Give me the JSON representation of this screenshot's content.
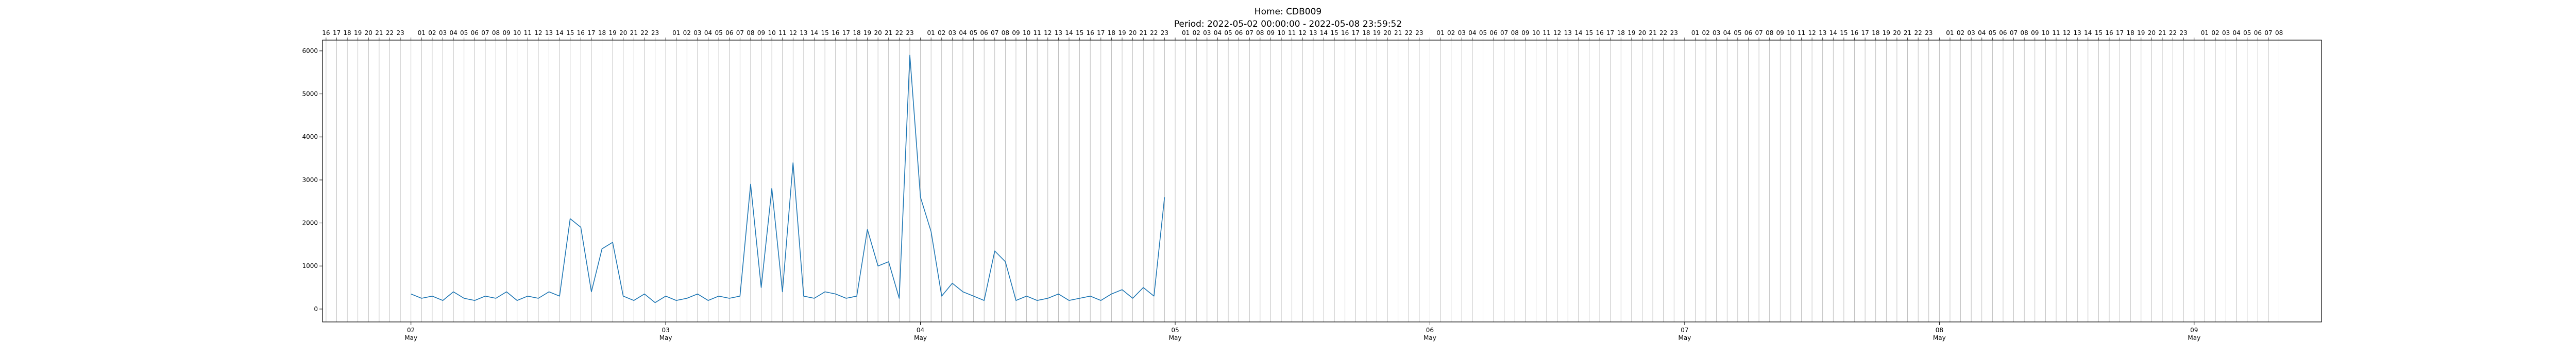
{
  "chart_data": {
    "type": "line",
    "title": "Home: CDB009",
    "subtitle": "Period: 2022-05-02 00:00:00 - 2022-05-08 23:59:52",
    "xlabel": "",
    "ylabel": "",
    "line_color": "#1f77b4",
    "grid": "vertical hourly lines",
    "xlim": [
      "2022-05-01 15:40",
      "2022-05-09 12:00"
    ],
    "ylim": [
      -300,
      6250
    ],
    "y_ticks": [
      "0",
      "1000",
      "2000",
      "3000",
      "4000",
      "5000",
      "6000"
    ],
    "x_ticks": [
      {
        "day": "02",
        "month": "May",
        "date": "2022-05-02"
      },
      {
        "day": "03",
        "month": "May",
        "date": "2022-05-03"
      },
      {
        "day": "04",
        "month": "May",
        "date": "2022-05-04"
      },
      {
        "day": "05",
        "month": "May",
        "date": "2022-05-05"
      },
      {
        "day": "06",
        "month": "May",
        "date": "2022-05-06"
      },
      {
        "day": "07",
        "month": "May",
        "date": "2022-05-07"
      },
      {
        "day": "08",
        "month": "May",
        "date": "2022-05-08"
      },
      {
        "day": "09",
        "month": "May",
        "date": "2022-05-09"
      }
    ],
    "top_axis": {
      "description": "hour labels every hour",
      "start": "2022-05-01 16:00",
      "end": "2022-05-09 08:00"
    },
    "series": [
      {
        "name": "",
        "points": [
          [
            "2022-05-02 00:00",
            350
          ],
          [
            "2022-05-02 01:00",
            250
          ],
          [
            "2022-05-02 02:00",
            300
          ],
          [
            "2022-05-02 03:00",
            200
          ],
          [
            "2022-05-02 04:00",
            400
          ],
          [
            "2022-05-02 05:00",
            250
          ],
          [
            "2022-05-02 06:00",
            200
          ],
          [
            "2022-05-02 07:00",
            300
          ],
          [
            "2022-05-02 08:00",
            250
          ],
          [
            "2022-05-02 09:00",
            400
          ],
          [
            "2022-05-02 10:00",
            200
          ],
          [
            "2022-05-02 11:00",
            300
          ],
          [
            "2022-05-02 12:00",
            250
          ],
          [
            "2022-05-02 13:00",
            400
          ],
          [
            "2022-05-02 14:00",
            300
          ],
          [
            "2022-05-02 15:00",
            2100
          ],
          [
            "2022-05-02 16:00",
            1900
          ],
          [
            "2022-05-02 17:00",
            400
          ],
          [
            "2022-05-02 18:00",
            1400
          ],
          [
            "2022-05-02 19:00",
            1550
          ],
          [
            "2022-05-02 20:00",
            300
          ],
          [
            "2022-05-02 21:00",
            200
          ],
          [
            "2022-05-02 22:00",
            350
          ],
          [
            "2022-05-02 23:00",
            150
          ],
          [
            "2022-05-03 00:00",
            300
          ],
          [
            "2022-05-03 01:00",
            200
          ],
          [
            "2022-05-03 02:00",
            250
          ],
          [
            "2022-05-03 03:00",
            350
          ],
          [
            "2022-05-03 04:00",
            200
          ],
          [
            "2022-05-03 05:00",
            300
          ],
          [
            "2022-05-03 06:00",
            250
          ],
          [
            "2022-05-03 07:00",
            300
          ],
          [
            "2022-05-03 08:00",
            2900
          ],
          [
            "2022-05-03 09:00",
            500
          ],
          [
            "2022-05-03 10:00",
            2800
          ],
          [
            "2022-05-03 11:00",
            400
          ],
          [
            "2022-05-03 12:00",
            3400
          ],
          [
            "2022-05-03 13:00",
            300
          ],
          [
            "2022-05-03 14:00",
            250
          ],
          [
            "2022-05-03 15:00",
            400
          ],
          [
            "2022-05-03 16:00",
            350
          ],
          [
            "2022-05-03 17:00",
            250
          ],
          [
            "2022-05-03 18:00",
            300
          ],
          [
            "2022-05-03 19:00",
            1850
          ],
          [
            "2022-05-03 20:00",
            1000
          ],
          [
            "2022-05-03 21:00",
            1100
          ],
          [
            "2022-05-03 22:00",
            250
          ],
          [
            "2022-05-03 23:00",
            5900
          ],
          [
            "2022-05-04 00:00",
            2600
          ],
          [
            "2022-05-04 01:00",
            1800
          ],
          [
            "2022-05-04 02:00",
            300
          ],
          [
            "2022-05-04 03:00",
            600
          ],
          [
            "2022-05-04 04:00",
            400
          ],
          [
            "2022-05-04 05:00",
            300
          ],
          [
            "2022-05-04 06:00",
            200
          ],
          [
            "2022-05-04 07:00",
            1350
          ],
          [
            "2022-05-04 08:00",
            1100
          ],
          [
            "2022-05-04 09:00",
            200
          ],
          [
            "2022-05-04 10:00",
            300
          ],
          [
            "2022-05-04 11:00",
            200
          ],
          [
            "2022-05-04 12:00",
            250
          ],
          [
            "2022-05-04 13:00",
            350
          ],
          [
            "2022-05-04 14:00",
            200
          ],
          [
            "2022-05-04 15:00",
            250
          ],
          [
            "2022-05-04 16:00",
            300
          ],
          [
            "2022-05-04 17:00",
            200
          ],
          [
            "2022-05-04 18:00",
            350
          ],
          [
            "2022-05-04 19:00",
            450
          ],
          [
            "2022-05-04 20:00",
            250
          ],
          [
            "2022-05-04 21:00",
            500
          ],
          [
            "2022-05-04 22:00",
            300
          ],
          [
            "2022-05-04 23:00",
            2600
          ]
        ]
      }
    ]
  }
}
